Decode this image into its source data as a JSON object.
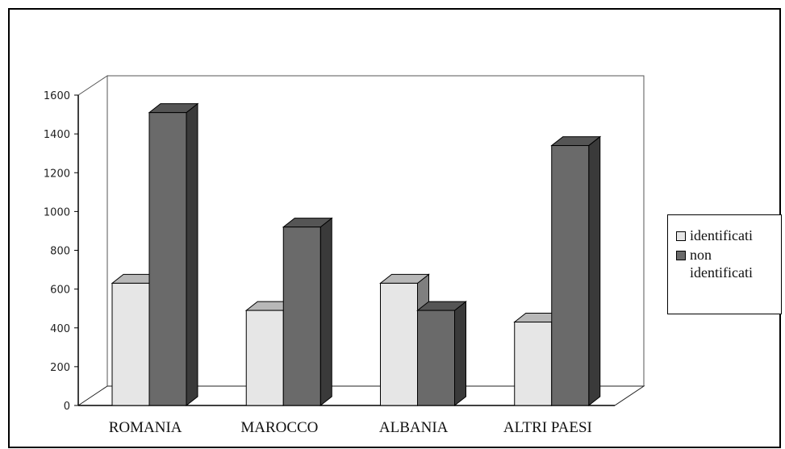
{
  "chart_data": {
    "type": "bar",
    "categories": [
      "ROMANIA",
      "MAROCCO",
      "ALBANIA",
      "ALTRI PAESI"
    ],
    "series": [
      {
        "name": "identificati",
        "values": [
          630,
          490,
          630,
          430
        ],
        "color": "#e6e6e6"
      },
      {
        "name": "non identificati",
        "values": [
          1510,
          920,
          490,
          1340
        ],
        "color": "#6a6a6a"
      }
    ],
    "yticks": [
      "0",
      "200",
      "400",
      "600",
      "800",
      "1000",
      "1200",
      "1400",
      "1600"
    ],
    "ylim": [
      0,
      1600
    ],
    "legend": "right",
    "grid": false,
    "three_d": true
  }
}
